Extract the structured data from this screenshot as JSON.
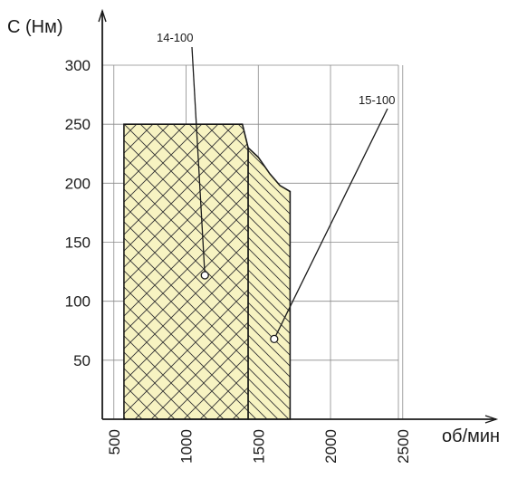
{
  "chart_data": {
    "type": "area",
    "title": "",
    "xlabel": "об/мин",
    "ylabel": "C (Нм)",
    "xlim": [
      420,
      2470
    ],
    "ylim": [
      0,
      300
    ],
    "xticks": [
      500,
      1000,
      1500,
      2000,
      2500
    ],
    "yticks": [
      50,
      100,
      150,
      200,
      250,
      300
    ],
    "grid": true,
    "legend": "none",
    "series": [
      {
        "name": "14-100",
        "fill": "#f7f3c2",
        "hatch": "cross",
        "points": [
          [
            570,
            0
          ],
          [
            570,
            250
          ],
          [
            1390,
            250
          ],
          [
            1430,
            230
          ],
          [
            1430,
            0
          ]
        ],
        "label_point": [
          1130,
          122
        ]
      },
      {
        "name": "15-100",
        "fill": "#f7f3c2",
        "hatch": "diagonal",
        "points": [
          [
            1430,
            0
          ],
          [
            1430,
            230
          ],
          [
            1500,
            222
          ],
          [
            1580,
            208
          ],
          [
            1650,
            198
          ],
          [
            1720,
            193
          ],
          [
            1720,
            0
          ]
        ],
        "label_point": [
          1610,
          68
        ]
      }
    ]
  }
}
